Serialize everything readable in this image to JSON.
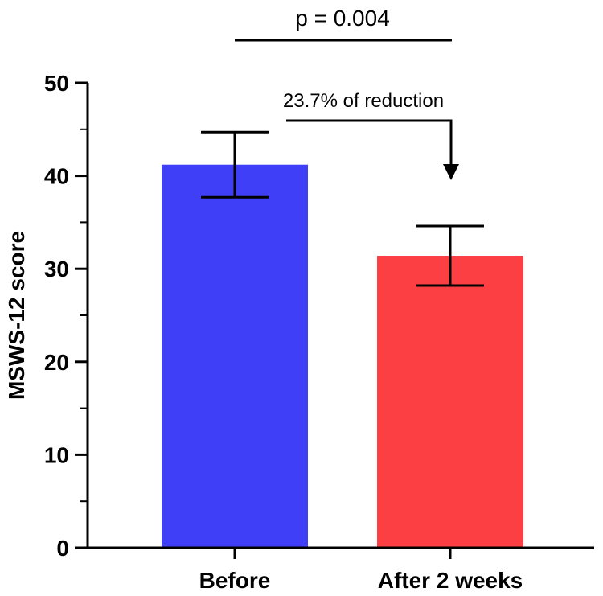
{
  "chart_data": {
    "type": "bar",
    "categories": [
      "Before",
      "After 2 weeks"
    ],
    "values": [
      41.2,
      31.4
    ],
    "error_upper": [
      44.7,
      34.6
    ],
    "error_lower": [
      37.7,
      28.2
    ],
    "ylabel": "MSWS-12 score",
    "xlabel": "",
    "ylim": [
      0,
      50
    ],
    "y_major_ticks": [
      0,
      10,
      20,
      30,
      40,
      50
    ],
    "y_major_tick_labels": [
      "0",
      "10",
      "20",
      "30",
      "40",
      "50"
    ],
    "y_minor_step": 5,
    "bar_colors": [
      "#3f3ff7",
      "#fc3f43"
    ],
    "significance": {
      "label": "p = 0.004"
    },
    "annotation": {
      "label": "23.7% of reduction"
    },
    "grid": false,
    "legend": "none"
  }
}
